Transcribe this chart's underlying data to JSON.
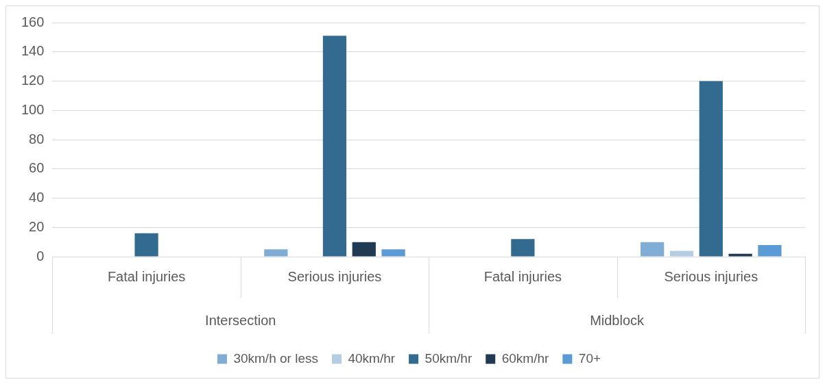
{
  "chart_data": {
    "type": "bar",
    "categories": [
      "Fatal injuries",
      "Serious injuries",
      "Fatal injuries",
      "Serious injuries"
    ],
    "annotations": [
      "Intersection",
      "Midblock"
    ],
    "series": [
      {
        "name": "30km/h or less",
        "color": "#7fadd3",
        "values": [
          0,
          5,
          0,
          10
        ]
      },
      {
        "name": "40km/hr",
        "color": "#b4cde3",
        "values": [
          0,
          0,
          0,
          4
        ]
      },
      {
        "name": "50km/hr",
        "color": "#336a8f",
        "values": [
          16,
          151,
          12,
          120
        ]
      },
      {
        "name": "60km/hr",
        "color": "#1f3a52",
        "values": [
          0,
          10,
          0,
          2
        ]
      },
      {
        "name": "70+",
        "color": "#5b9bd5",
        "values": [
          0,
          5,
          0,
          8
        ]
      }
    ],
    "ylim": [
      0,
      160
    ],
    "yticks": [
      0,
      20,
      40,
      60,
      80,
      100,
      120,
      140,
      160
    ],
    "grid": "y",
    "legend": "bottom"
  }
}
